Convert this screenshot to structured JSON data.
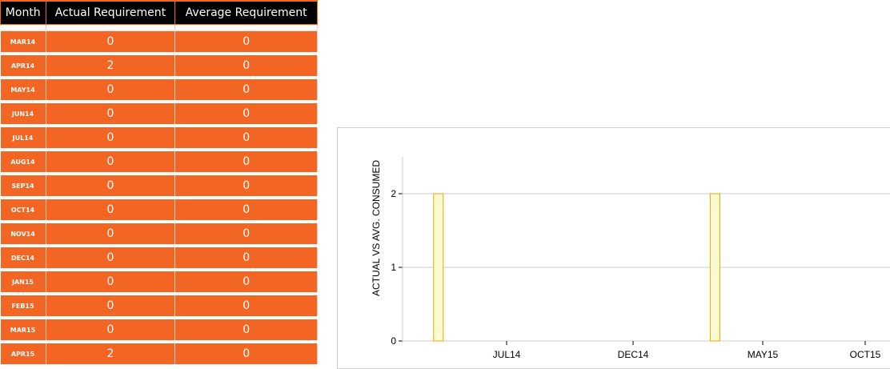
{
  "table": {
    "headers": [
      "Month",
      "Actual Requirement",
      "Average Requirement"
    ],
    "rows": [
      [
        "MAR14",
        "0",
        "0"
      ],
      [
        "APR14",
        "2",
        "0"
      ],
      [
        "MAY14",
        "0",
        "0"
      ],
      [
        "JUN14",
        "0",
        "0"
      ],
      [
        "JUL14",
        "0",
        "0"
      ],
      [
        "AUG14",
        "0",
        "0"
      ],
      [
        "SEP14",
        "0",
        "0"
      ],
      [
        "OCT14",
        "0",
        "0"
      ],
      [
        "NOV14",
        "0",
        "0"
      ],
      [
        "DEC14",
        "0",
        "0"
      ],
      [
        "JAN15",
        "0",
        "0"
      ],
      [
        "FEB15",
        "0",
        "0"
      ],
      [
        "MAR15",
        "0",
        "0"
      ],
      [
        "APR15",
        "2",
        "0"
      ]
    ]
  },
  "chart_data": {
    "type": "bar",
    "ylabel": "ACTUAL VS AVG. CONSUMED",
    "xlabel": "",
    "categories": [
      "MAR14",
      "APR14",
      "MAY14",
      "JUN14",
      "JUL14",
      "AUG14",
      "SEP14",
      "OCT14",
      "NOV14",
      "DEC14",
      "JAN15",
      "FEB15",
      "MAR15",
      "APR15"
    ],
    "series": [
      {
        "values": [
          0,
          2,
          0,
          0,
          0,
          0,
          0,
          0,
          0,
          0,
          0,
          0,
          0,
          2
        ]
      }
    ],
    "xticks": [
      "JUL14",
      "DEC14",
      "MAY15",
      "OCT15"
    ],
    "yticks": [
      "0",
      "1",
      "2"
    ],
    "ylim": [
      0,
      2.5
    ],
    "grid": true,
    "bar_fill": "#fafad2",
    "bar_stroke": "#f5a300",
    "accent": "#f26522"
  }
}
